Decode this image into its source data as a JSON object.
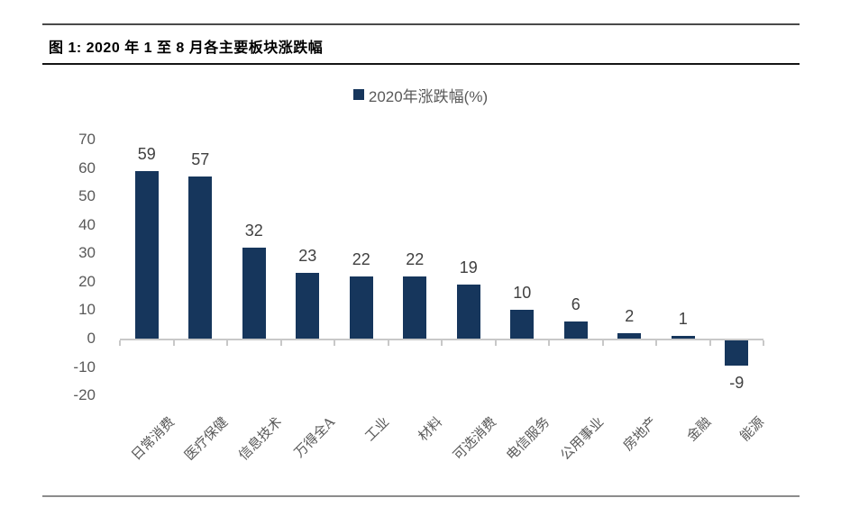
{
  "figure": {
    "title": "图 1: 2020 年 1 至 8 月各主要板块涨跌幅"
  },
  "legend": {
    "marker": "navy-square-icon",
    "label": "2020年涨跌幅(%)"
  },
  "chart_data": {
    "type": "bar",
    "title": "2020年涨跌幅(%)",
    "categories": [
      "日常消费",
      "医疗保健",
      "信息技术",
      "万得全A",
      "工业",
      "材料",
      "可选消费",
      "电信服务",
      "公用事业",
      "房地产",
      "金融",
      "能源"
    ],
    "values": [
      59,
      57,
      32,
      23,
      22,
      22,
      19,
      10,
      6,
      2,
      1,
      -9
    ],
    "data_labels": [
      "59",
      "57",
      "32",
      "23",
      "22",
      "22",
      "19",
      "10",
      "6",
      "2",
      "1",
      "-9"
    ],
    "xlabel": "",
    "ylabel": "",
    "ylim": [
      -20,
      70
    ],
    "yticks": [
      70,
      60,
      50,
      40,
      30,
      20,
      10,
      0,
      -10,
      -20
    ],
    "grid": false,
    "legend_position": "top-center",
    "bar_color": "#16365C"
  },
  "colors": {
    "bar": "#16365C",
    "value_label": "#404040",
    "axis_label": "#595959",
    "axis_line": "#c8c8c8",
    "title": "#000000"
  }
}
